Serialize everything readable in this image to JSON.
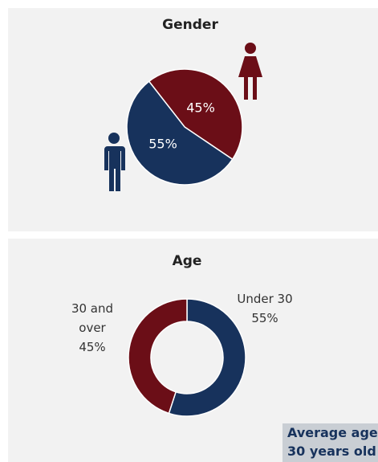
{
  "chart_data": [
    {
      "type": "pie",
      "title": "Gender",
      "values": [
        45,
        55
      ],
      "value_labels": [
        "45%",
        "55%"
      ],
      "colors": [
        "#6b0e17",
        "#17325c"
      ]
    },
    {
      "type": "donut",
      "title": "Age",
      "categories": [
        "Under 30",
        "30 and over"
      ],
      "values": [
        55,
        45
      ],
      "value_labels": [
        "55%",
        "45%"
      ],
      "colors": [
        "#17325c",
        "#6b0e17"
      ],
      "annotation": [
        "Average age",
        "30 years old"
      ]
    }
  ]
}
